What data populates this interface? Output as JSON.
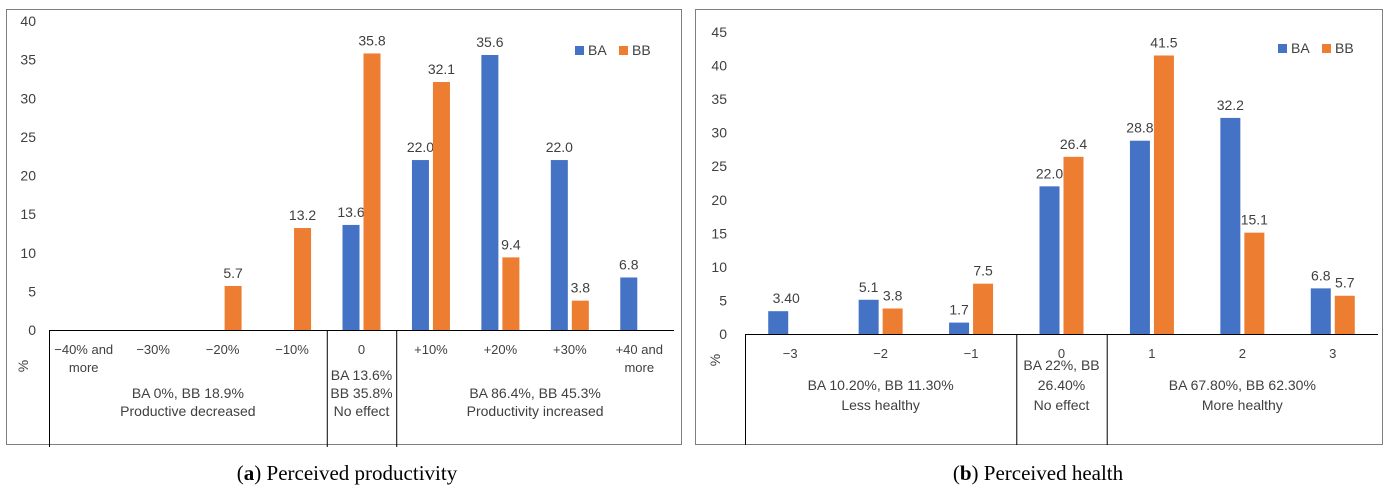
{
  "colors": {
    "BA": "#4472C4",
    "BB": "#ED7D31"
  },
  "chart_data": [
    {
      "type": "bar",
      "caption_letter": "a",
      "caption_text": "Perceived productivity",
      "ylabel": "%",
      "ylim": [
        0,
        40
      ],
      "yticks": [
        0,
        5,
        10,
        15,
        20,
        25,
        30,
        35,
        40
      ],
      "categories": [
        [
          "−40% and",
          "more"
        ],
        [
          "−30%"
        ],
        [
          "−20%"
        ],
        [
          "−10%"
        ],
        [
          "0"
        ],
        [
          "+10%"
        ],
        [
          "+20%"
        ],
        [
          "+30%"
        ],
        [
          "+40 and",
          "more"
        ]
      ],
      "series": [
        {
          "name": "BA",
          "values": [
            null,
            null,
            null,
            null,
            13.6,
            22.0,
            35.6,
            22.0,
            6.8
          ],
          "labels": [
            null,
            null,
            null,
            null,
            "13.6",
            "22.0",
            "35.6",
            "22.0",
            "6.8"
          ]
        },
        {
          "name": "BB",
          "values": [
            null,
            null,
            5.7,
            13.2,
            35.8,
            32.1,
            9.4,
            3.8,
            null
          ],
          "labels": [
            null,
            null,
            "5.7",
            "13.2",
            "35.8",
            "32.1",
            "9.4",
            "3.8",
            null
          ]
        }
      ],
      "groups": [
        {
          "span": [
            0,
            3
          ],
          "lines": [
            "BA 0%, BB 18.9%",
            "Productive decreased"
          ]
        },
        {
          "span": [
            4,
            4
          ],
          "lines": [
            "BA 13.6%",
            "BB 35.8%",
            "No effect"
          ]
        },
        {
          "span": [
            5,
            8
          ],
          "lines": [
            "BA 86.4%, BB 45.3%",
            "Productivity increased"
          ]
        }
      ],
      "legend": [
        "BA",
        "BB"
      ],
      "legend_position": "top-right"
    },
    {
      "type": "bar",
      "caption_letter": "b",
      "caption_text": "Perceived health",
      "ylabel": "%",
      "ylim": [
        0,
        45
      ],
      "yticks": [
        0,
        5,
        10,
        15,
        20,
        25,
        30,
        35,
        40,
        45
      ],
      "categories": [
        [
          "−3"
        ],
        [
          "−2"
        ],
        [
          "−1"
        ],
        [
          "0"
        ],
        [
          "1"
        ],
        [
          "2"
        ],
        [
          "3"
        ]
      ],
      "series": [
        {
          "name": "BA",
          "values": [
            3.4,
            5.1,
            1.7,
            22.0,
            28.8,
            32.2,
            6.8
          ],
          "labels": [
            "3.40",
            "5.1",
            "1.7",
            "22.0",
            "28.8",
            "32.2",
            "6.8"
          ]
        },
        {
          "name": "BB",
          "values": [
            null,
            3.8,
            7.5,
            26.4,
            41.5,
            15.1,
            5.7
          ],
          "labels": [
            null,
            "3.8",
            "7.5",
            "26.4",
            "41.5",
            "15.1",
            "5.7"
          ]
        }
      ],
      "groups": [
        {
          "span": [
            0,
            2
          ],
          "lines": [
            "BA 10.20%, BB 11.30%",
            "Less healthy"
          ]
        },
        {
          "span": [
            3,
            3
          ],
          "lines": [
            "BA 22%, BB",
            "26.40%",
            "No effect"
          ]
        },
        {
          "span": [
            4,
            6
          ],
          "lines": [
            "BA 67.80%, BB 62.30%",
            "More healthy"
          ]
        }
      ],
      "legend": [
        "BA",
        "BB"
      ],
      "legend_position": "top-right"
    }
  ]
}
